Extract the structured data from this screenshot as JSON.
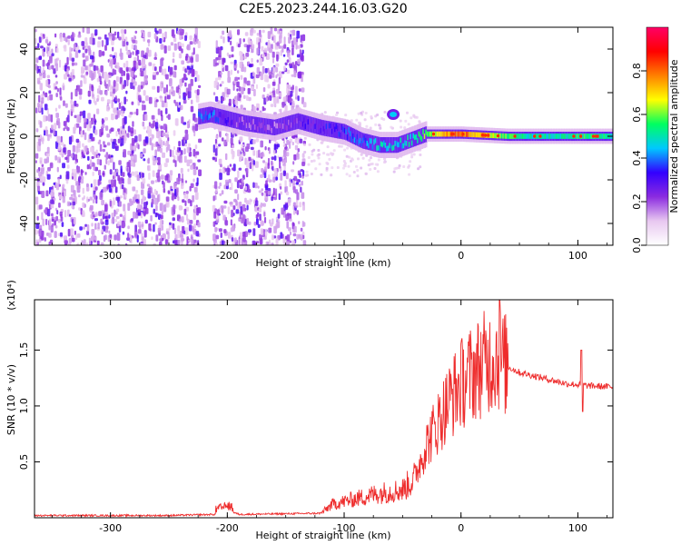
{
  "title": "C2E5.2023.244.16.03.G20",
  "chart_data": [
    {
      "type": "heatmap",
      "xlabel": "Height of straight line (km)",
      "ylabel": "Frequency (Hz)",
      "xlim": [
        -365,
        130
      ],
      "ylim": [
        -50,
        50
      ],
      "xticks": [
        -300,
        -200,
        -100,
        0,
        100
      ],
      "yticks": [
        -40,
        -20,
        0,
        20,
        40
      ],
      "colorbar": {
        "label": "Normalized spectral amplitude",
        "range": [
          0,
          1
        ],
        "ticks": [
          "0.0",
          "0.2",
          "0.4",
          "0.6",
          "0.8"
        ],
        "tick_values": [
          0,
          0.2,
          0.4,
          0.6,
          0.8
        ],
        "colors": [
          "#ffffff",
          "#e8c8f0",
          "#8b2be0",
          "#3300ff",
          "#00c8ff",
          "#00ff60",
          "#ffff00",
          "#ff8000",
          "#ff0000",
          "#ff0066"
        ]
      },
      "noise_band_x": [
        -365,
        -135
      ],
      "gap_x": [
        -225,
        -213
      ],
      "center_line": [
        {
          "x": -225,
          "y": 9,
          "amp": 0.35
        },
        {
          "x": -215,
          "y": 10,
          "amp": 0.4
        },
        {
          "x": -200,
          "y": 8,
          "amp": 0.25
        },
        {
          "x": -185,
          "y": 6,
          "amp": 0.2
        },
        {
          "x": -160,
          "y": 4,
          "amp": 0.2
        },
        {
          "x": -140,
          "y": 7,
          "amp": 0.25
        },
        {
          "x": -120,
          "y": 4,
          "amp": 0.3
        },
        {
          "x": -100,
          "y": 2,
          "amp": 0.35
        },
        {
          "x": -85,
          "y": -2,
          "amp": 0.4
        },
        {
          "x": -70,
          "y": -4,
          "amp": 0.45
        },
        {
          "x": -55,
          "y": -4,
          "amp": 0.45
        },
        {
          "x": -40,
          "y": -1,
          "amp": 0.5
        },
        {
          "x": -30,
          "y": 1,
          "amp": 0.6
        },
        {
          "x": -15,
          "y": 1,
          "amp": 0.75
        },
        {
          "x": 0,
          "y": 1,
          "amp": 0.8
        },
        {
          "x": 20,
          "y": 0.5,
          "amp": 0.7
        },
        {
          "x": 40,
          "y": 0,
          "amp": 0.55
        },
        {
          "x": 60,
          "y": 0,
          "amp": 0.5
        },
        {
          "x": 80,
          "y": 0,
          "amp": 0.5
        },
        {
          "x": 100,
          "y": 0,
          "amp": 0.55
        },
        {
          "x": 130,
          "y": 0,
          "amp": 0.5
        }
      ],
      "side_blob": {
        "x": -58,
        "y": 10,
        "amp": 0.45
      }
    },
    {
      "type": "line",
      "xlabel": "Height of straight line (km)",
      "ylabel": "SNR (10 * v/v)",
      "yscale_note": "(x10⁴)",
      "xlim": [
        -365,
        130
      ],
      "ylim": [
        0,
        1.95
      ],
      "xticks": [
        -300,
        -200,
        -100,
        0,
        100
      ],
      "yticks": [
        0.5,
        1.0,
        1.5
      ],
      "ytick_labels": [
        "0.5",
        "1.0",
        "1.5"
      ],
      "color": "#ee2c2c",
      "envelope": [
        {
          "x": -365,
          "y": 0.02
        },
        {
          "x": -250,
          "y": 0.02
        },
        {
          "x": -210,
          "y": 0.03
        },
        {
          "x": -200,
          "y": 0.07
        },
        {
          "x": -190,
          "y": 0.03
        },
        {
          "x": -120,
          "y": 0.04
        },
        {
          "x": -110,
          "y": 0.12
        },
        {
          "x": -90,
          "y": 0.17
        },
        {
          "x": -70,
          "y": 0.22
        },
        {
          "x": -50,
          "y": 0.25
        },
        {
          "x": -40,
          "y": 0.35
        },
        {
          "x": -30,
          "y": 0.65
        },
        {
          "x": -20,
          "y": 0.85
        },
        {
          "x": -10,
          "y": 1.05
        },
        {
          "x": 0,
          "y": 1.2
        },
        {
          "x": 10,
          "y": 1.3
        },
        {
          "x": 20,
          "y": 1.38
        },
        {
          "x": 30,
          "y": 1.45
        },
        {
          "x": 40,
          "y": 1.35
        },
        {
          "x": 50,
          "y": 1.3
        },
        {
          "x": 70,
          "y": 1.25
        },
        {
          "x": 90,
          "y": 1.2
        },
        {
          "x": 110,
          "y": 1.18
        },
        {
          "x": 130,
          "y": 1.17
        }
      ],
      "peaks": [
        {
          "x": 33,
          "y": 1.95
        },
        {
          "x": 103,
          "y": 1.5
        },
        {
          "x": 104,
          "y": 0.95
        }
      ]
    }
  ]
}
